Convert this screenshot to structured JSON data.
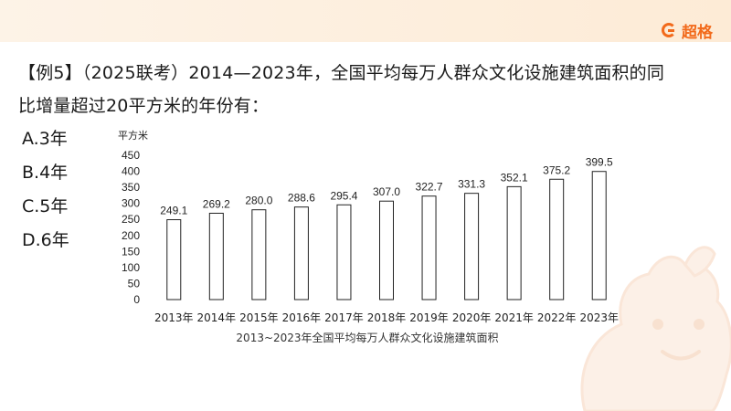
{
  "brand": {
    "logo_text": "超格",
    "accent": "#f26a1b"
  },
  "question": {
    "line1": "【例5】（2025联考）2014—2023年，全国平均每万人群众文化设施建筑面积的同",
    "line2": "比增量超过20平方米的年份有："
  },
  "options": [
    {
      "label": "A.3年"
    },
    {
      "label": "B.4年"
    },
    {
      "label": "C.5年"
    },
    {
      "label": "D.6年"
    }
  ],
  "chart_data": {
    "type": "bar",
    "title": "2013~2023年全国平均每万人群众文化设施建筑面积",
    "unit_label": "平方米",
    "categories": [
      "2013年",
      "2014年",
      "2015年",
      "2016年",
      "2017年",
      "2018年",
      "2019年",
      "2020年",
      "2021年",
      "2022年",
      "2023年"
    ],
    "values": [
      249.1,
      269.2,
      280.0,
      288.6,
      295.4,
      307.0,
      322.7,
      331.3,
      352.1,
      375.2,
      399.5
    ],
    "value_labels": [
      "249.1",
      "269.2",
      "280.0",
      "288.6",
      "295.4",
      "307.0",
      "322.7",
      "331.3",
      "352.1",
      "375.2",
      "399.5"
    ],
    "ylim": [
      0,
      450
    ],
    "yticks": [
      0,
      50,
      100,
      150,
      200,
      250,
      300,
      350,
      400,
      450
    ],
    "grid": false,
    "bar_fill": "#ffffff",
    "bar_stroke": "#222222"
  }
}
